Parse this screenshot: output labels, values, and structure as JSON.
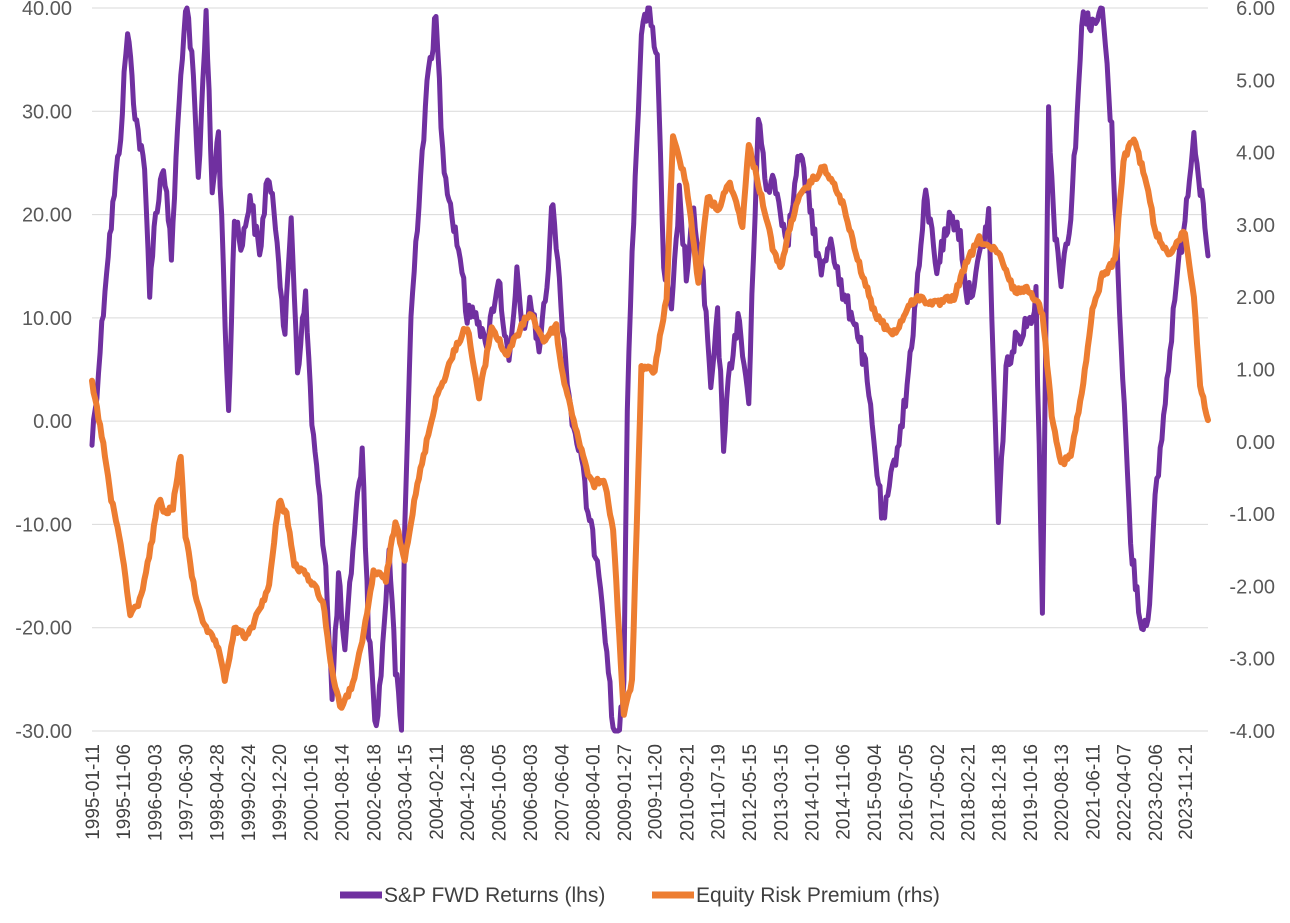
{
  "chart_data": {
    "type": "line",
    "title": "",
    "xlabel": "",
    "ylabel": "",
    "legend_position": "bottom",
    "grid": true,
    "x_tick_labels": [
      "1995-01-11",
      "1995-11-06",
      "1996-09-03",
      "1997-06-30",
      "1998-04-28",
      "1999-02-24",
      "1999-12-20",
      "2000-10-16",
      "2001-08-14",
      "2002-06-18",
      "2003-04-15",
      "2004-02-11",
      "2004-12-08",
      "2005-10-05",
      "2006-08-03",
      "2007-06-04",
      "2008-04-01",
      "2009-01-27",
      "2009-11-20",
      "2010-09-21",
      "2011-07-19",
      "2012-05-15",
      "2013-03-15",
      "2014-01-10",
      "2014-11-06",
      "2015-09-04",
      "2016-07-05",
      "2017-05-02",
      "2018-02-21",
      "2018-12-18",
      "2019-10-16",
      "2020-08-13",
      "2021-06-11",
      "2022-04-07",
      "2023-02-06",
      "2023-11-21"
    ],
    "x_range": [
      "1995-01-11",
      "2024-06-30"
    ],
    "y_left": {
      "label": "lhs",
      "range": [
        -30,
        40
      ],
      "ticks": [
        "40.00",
        "30.00",
        "20.00",
        "10.00",
        "0.00",
        "-10.00",
        "-20.00",
        "-30.00"
      ]
    },
    "y_right": {
      "label": "rhs",
      "range": [
        -4,
        6
      ],
      "ticks": [
        "6.00",
        "5.00",
        "4.00",
        "3.00",
        "2.00",
        "1.00",
        "0.00",
        "-1.00",
        "-2.00",
        "-3.00",
        "-4.00"
      ]
    },
    "series": [
      {
        "name": "S&P FWD Returns (lhs)",
        "axis": "left",
        "color": "#7030A0",
        "points": [
          [
            "1995-01-11",
            -2
          ],
          [
            "1995-03-15",
            5
          ],
          [
            "1995-06-01",
            15
          ],
          [
            "1995-08-15",
            22
          ],
          [
            "1995-10-15",
            28
          ],
          [
            "1995-12-20",
            38
          ],
          [
            "1996-03-01",
            30
          ],
          [
            "1996-06-01",
            24
          ],
          [
            "1996-07-20",
            13
          ],
          [
            "1996-09-15",
            20
          ],
          [
            "1996-12-01",
            25
          ],
          [
            "1997-02-15",
            16
          ],
          [
            "1997-04-15",
            28
          ],
          [
            "1997-06-01",
            36
          ],
          [
            "1997-07-15",
            40
          ],
          [
            "1997-09-15",
            33
          ],
          [
            "1997-11-01",
            23
          ],
          [
            "1998-01-15",
            40
          ],
          [
            "1998-03-15",
            22
          ],
          [
            "1998-05-15",
            28
          ],
          [
            "1998-07-01",
            15
          ],
          [
            "1998-08-20",
            0
          ],
          [
            "1998-10-15",
            20
          ],
          [
            "1999-01-01",
            17
          ],
          [
            "1999-03-15",
            22
          ],
          [
            "1999-06-15",
            16
          ],
          [
            "1999-09-01",
            24
          ],
          [
            "1999-12-01",
            18
          ],
          [
            "2000-02-15",
            8
          ],
          [
            "2000-04-15",
            20
          ],
          [
            "2000-06-15",
            5
          ],
          [
            "2000-09-01",
            12
          ],
          [
            "2000-11-01",
            0
          ],
          [
            "2001-01-15",
            -8
          ],
          [
            "2001-03-15",
            -14
          ],
          [
            "2001-05-15",
            -27
          ],
          [
            "2001-07-15",
            -15
          ],
          [
            "2001-09-15",
            -23
          ],
          [
            "2001-12-01",
            -12
          ],
          [
            "2002-03-01",
            -3
          ],
          [
            "2002-05-01",
            -20
          ],
          [
            "2002-07-15",
            -30
          ],
          [
            "2002-09-15",
            -22
          ],
          [
            "2002-11-15",
            -12
          ],
          [
            "2003-01-15",
            -24
          ],
          [
            "2003-03-15",
            -30
          ],
          [
            "2003-04-15",
            -10
          ],
          [
            "2003-06-15",
            10
          ],
          [
            "2003-09-15",
            24
          ],
          [
            "2003-12-01",
            34
          ],
          [
            "2004-02-11",
            39
          ],
          [
            "2004-04-15",
            26
          ],
          [
            "2004-07-15",
            20
          ],
          [
            "2004-10-01",
            16
          ],
          [
            "2004-12-08",
            10
          ],
          [
            "2005-03-01",
            11
          ],
          [
            "2005-06-01",
            7
          ],
          [
            "2005-10-05",
            14
          ],
          [
            "2006-01-15",
            5
          ],
          [
            "2006-04-01",
            14
          ],
          [
            "2006-06-15",
            8
          ],
          [
            "2006-08-03",
            12
          ],
          [
            "2006-11-01",
            7
          ],
          [
            "2007-01-15",
            13
          ],
          [
            "2007-03-15",
            22
          ],
          [
            "2007-05-01",
            15
          ],
          [
            "2007-07-15",
            6
          ],
          [
            "2007-09-15",
            0
          ],
          [
            "2007-12-01",
            -3
          ],
          [
            "2008-03-01",
            -10
          ],
          [
            "2008-06-01",
            -14
          ],
          [
            "2008-08-15",
            -22
          ],
          [
            "2008-10-15",
            -30
          ],
          [
            "2008-12-15",
            -30
          ],
          [
            "2009-01-27",
            -26
          ],
          [
            "2009-03-01",
            2
          ],
          [
            "2009-05-01",
            20
          ],
          [
            "2009-07-15",
            38
          ],
          [
            "2009-10-01",
            40
          ],
          [
            "2009-12-15",
            35
          ],
          [
            "2010-02-15",
            15
          ],
          [
            "2010-05-01",
            10
          ],
          [
            "2010-07-15",
            22
          ],
          [
            "2010-09-21",
            14
          ],
          [
            "2010-12-01",
            20
          ],
          [
            "2011-03-01",
            14
          ],
          [
            "2011-05-15",
            3
          ],
          [
            "2011-07-19",
            10
          ],
          [
            "2011-09-15",
            -2
          ],
          [
            "2011-11-15",
            5
          ],
          [
            "2012-02-01",
            10
          ],
          [
            "2012-05-15",
            2
          ],
          [
            "2012-08-15",
            30
          ],
          [
            "2012-11-01",
            22
          ],
          [
            "2013-01-15",
            24
          ],
          [
            "2013-03-15",
            20
          ],
          [
            "2013-06-01",
            18
          ],
          [
            "2013-09-15",
            26
          ],
          [
            "2014-01-10",
            20
          ],
          [
            "2014-04-15",
            14
          ],
          [
            "2014-07-15",
            18
          ],
          [
            "2014-11-06",
            12
          ],
          [
            "2015-03-01",
            10
          ],
          [
            "2015-06-15",
            5
          ],
          [
            "2015-09-04",
            -2
          ],
          [
            "2015-12-01",
            -10
          ],
          [
            "2016-03-01",
            -5
          ],
          [
            "2016-07-05",
            2
          ],
          [
            "2016-10-15",
            12
          ],
          [
            "2017-01-15",
            22
          ],
          [
            "2017-05-02",
            15
          ],
          [
            "2017-09-15",
            20
          ],
          [
            "2017-12-15",
            18
          ],
          [
            "2018-02-21",
            12
          ],
          [
            "2018-05-15",
            14
          ],
          [
            "2018-09-15",
            20
          ],
          [
            "2018-12-18",
            -10
          ],
          [
            "2019-03-01",
            5
          ],
          [
            "2019-06-15",
            8
          ],
          [
            "2019-10-16",
            10
          ],
          [
            "2019-12-15",
            12
          ],
          [
            "2020-02-15",
            -18
          ],
          [
            "2020-04-15",
            30
          ],
          [
            "2020-06-15",
            18
          ],
          [
            "2020-08-13",
            14
          ],
          [
            "2020-11-15",
            20
          ],
          [
            "2021-01-15",
            30
          ],
          [
            "2021-03-15",
            40
          ],
          [
            "2021-06-11",
            38
          ],
          [
            "2021-09-15",
            40
          ],
          [
            "2021-12-15",
            28
          ],
          [
            "2022-03-15",
            8
          ],
          [
            "2022-06-15",
            -12
          ],
          [
            "2022-09-30",
            -20
          ],
          [
            "2022-12-15",
            -18
          ],
          [
            "2023-02-06",
            -8
          ],
          [
            "2023-05-15",
            2
          ],
          [
            "2023-08-15",
            12
          ],
          [
            "2023-11-21",
            20
          ],
          [
            "2024-02-15",
            28
          ],
          [
            "2024-06-30",
            16
          ]
        ]
      },
      {
        "name": "Equity Risk Premium (rhs)",
        "axis": "right",
        "color": "#ED7D31",
        "points": [
          [
            "1995-01-11",
            0.8
          ],
          [
            "1995-04-15",
            0.1
          ],
          [
            "1995-07-15",
            -0.8
          ],
          [
            "1995-10-15",
            -1.4
          ],
          [
            "1996-01-15",
            -2.4
          ],
          [
            "1996-04-15",
            -2.2
          ],
          [
            "1996-07-15",
            -1.6
          ],
          [
            "1996-10-15",
            -0.8
          ],
          [
            "1996-12-15",
            -1.0
          ],
          [
            "1997-03-01",
            -0.9
          ],
          [
            "1997-05-15",
            -0.2
          ],
          [
            "1997-07-01",
            -1.3
          ],
          [
            "1997-10-01",
            -2.1
          ],
          [
            "1998-01-15",
            -2.6
          ],
          [
            "1998-04-28",
            -2.8
          ],
          [
            "1998-07-15",
            -3.3
          ],
          [
            "1998-10-15",
            -2.6
          ],
          [
            "1999-02-24",
            -2.7
          ],
          [
            "1999-06-15",
            -2.3
          ],
          [
            "1999-09-15",
            -2.0
          ],
          [
            "1999-12-20",
            -0.8
          ],
          [
            "2000-03-01",
            -1.0
          ],
          [
            "2000-05-15",
            -1.7
          ],
          [
            "2000-10-16",
            -1.9
          ],
          [
            "2001-02-15",
            -2.2
          ],
          [
            "2001-05-15",
            -3.2
          ],
          [
            "2001-08-14",
            -3.7
          ],
          [
            "2001-11-15",
            -3.4
          ],
          [
            "2002-03-01",
            -2.8
          ],
          [
            "2002-06-18",
            -1.8
          ],
          [
            "2002-10-15",
            -1.9
          ],
          [
            "2003-01-15",
            -1.1
          ],
          [
            "2003-04-15",
            -1.6
          ],
          [
            "2003-08-15",
            -0.6
          ],
          [
            "2004-02-11",
            0.6
          ],
          [
            "2004-06-01",
            1.0
          ],
          [
            "2004-09-15",
            1.4
          ],
          [
            "2004-12-08",
            1.6
          ],
          [
            "2005-04-01",
            0.6
          ],
          [
            "2005-08-01",
            1.6
          ],
          [
            "2005-12-15",
            1.2
          ],
          [
            "2006-04-15",
            1.5
          ],
          [
            "2006-08-03",
            1.8
          ],
          [
            "2006-12-15",
            1.4
          ],
          [
            "2007-04-15",
            1.6
          ],
          [
            "2007-06-04",
            1.0
          ],
          [
            "2007-09-15",
            0.4
          ],
          [
            "2008-01-15",
            -0.3
          ],
          [
            "2008-04-01",
            -0.6
          ],
          [
            "2008-07-15",
            -0.5
          ],
          [
            "2008-10-15",
            -1.2
          ],
          [
            "2009-01-27",
            -3.8
          ],
          [
            "2009-04-15",
            -3.3
          ],
          [
            "2009-07-15",
            1.0
          ],
          [
            "2009-11-20",
            1.0
          ],
          [
            "2010-03-15",
            2.0
          ],
          [
            "2010-05-15",
            4.2
          ],
          [
            "2010-09-21",
            3.6
          ],
          [
            "2011-01-15",
            2.2
          ],
          [
            "2011-04-15",
            3.4
          ],
          [
            "2011-07-19",
            3.2
          ],
          [
            "2011-11-15",
            3.6
          ],
          [
            "2012-03-15",
            3.0
          ],
          [
            "2012-05-15",
            4.1
          ],
          [
            "2012-09-15",
            3.4
          ],
          [
            "2013-01-15",
            2.6
          ],
          [
            "2013-03-15",
            2.4
          ],
          [
            "2013-08-15",
            3.3
          ],
          [
            "2014-01-10",
            3.6
          ],
          [
            "2014-05-15",
            3.8
          ],
          [
            "2014-11-06",
            3.3
          ],
          [
            "2015-03-15",
            2.6
          ],
          [
            "2015-09-04",
            1.8
          ],
          [
            "2015-12-15",
            1.6
          ],
          [
            "2016-04-01",
            1.5
          ],
          [
            "2016-07-05",
            1.8
          ],
          [
            "2016-10-15",
            2.0
          ],
          [
            "2017-05-02",
            1.9
          ],
          [
            "2017-10-15",
            2.0
          ],
          [
            "2018-02-21",
            2.5
          ],
          [
            "2018-06-15",
            2.8
          ],
          [
            "2018-12-18",
            2.6
          ],
          [
            "2019-05-15",
            2.1
          ],
          [
            "2019-10-16",
            2.1
          ],
          [
            "2020-02-15",
            1.8
          ],
          [
            "2020-05-15",
            0.4
          ],
          [
            "2020-08-13",
            -0.3
          ],
          [
            "2020-11-15",
            -0.2
          ],
          [
            "2021-03-15",
            0.8
          ],
          [
            "2021-06-11",
            1.8
          ],
          [
            "2021-09-15",
            2.3
          ],
          [
            "2022-01-15",
            2.5
          ],
          [
            "2022-04-07",
            3.9
          ],
          [
            "2022-07-15",
            4.2
          ],
          [
            "2022-11-15",
            3.6
          ],
          [
            "2023-02-06",
            2.9
          ],
          [
            "2023-06-15",
            2.6
          ],
          [
            "2023-11-21",
            2.9
          ],
          [
            "2024-02-15",
            2.0
          ],
          [
            "2024-04-15",
            0.8
          ],
          [
            "2024-06-30",
            0.3
          ]
        ]
      }
    ]
  }
}
